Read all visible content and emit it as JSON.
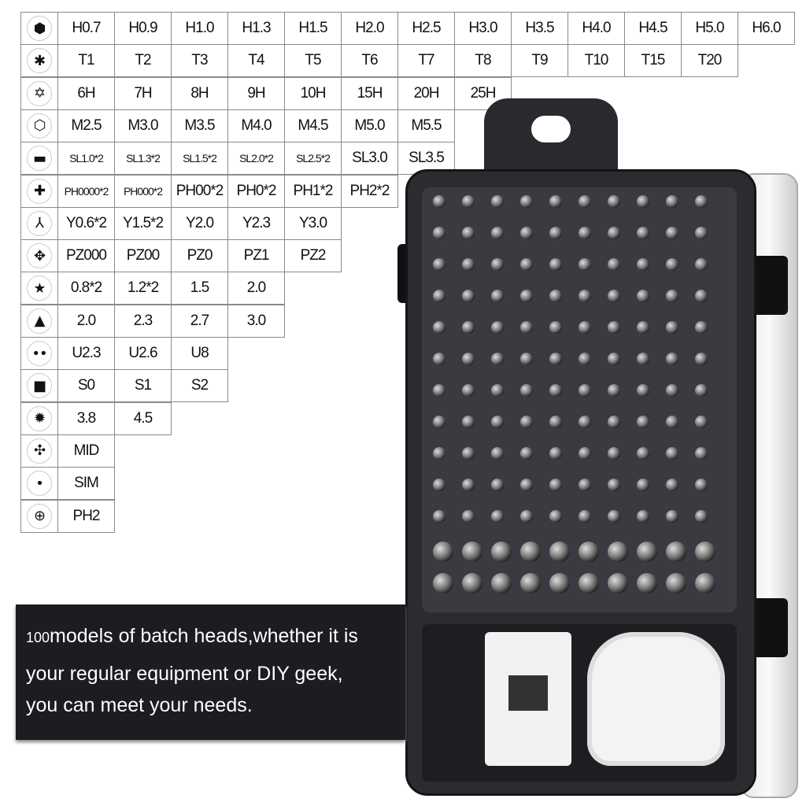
{
  "table": {
    "rows": [
      {
        "icon": "hex-icon",
        "glyph": "⬢",
        "cells": [
          "H0.7",
          "H0.9",
          "H1.0",
          "H1.3",
          "H1.5",
          "H2.0",
          "H2.5",
          "H3.0",
          "H3.5",
          "H4.0",
          "H4.5",
          "H5.0",
          "H6.0"
        ]
      },
      {
        "icon": "torx-icon",
        "glyph": "✱",
        "cells": [
          "T1",
          "T2",
          "T3",
          "T4",
          "T5",
          "T6",
          "T7",
          "T8",
          "T9",
          "T10",
          "T15",
          "T20"
        ]
      },
      {
        "icon": "torx-security-icon",
        "glyph": "✡",
        "cells": [
          "6H",
          "7H",
          "8H",
          "9H",
          "10H",
          "15H",
          "20H",
          "25H"
        ]
      },
      {
        "icon": "hex-socket-icon",
        "glyph": "⬡",
        "cells": [
          "M2.5",
          "M3.0",
          "M3.5",
          "M4.0",
          "M4.5",
          "M5.0",
          "M5.5"
        ]
      },
      {
        "icon": "slotted-icon",
        "glyph": "▬",
        "cells": [
          "SL1.0*2",
          "SL1.3*2",
          "SL1.5*2",
          "SL2.0*2",
          "SL2.5*2",
          "SL3.0",
          "SL3.5"
        ]
      },
      {
        "icon": "phillips-icon",
        "glyph": "✚",
        "cells": [
          "PH0000*2",
          "PH000*2",
          "PH00*2",
          "PH0*2",
          "PH1*2",
          "PH2*2"
        ]
      },
      {
        "icon": "tri-wing-icon",
        "glyph": "⅄",
        "cells": [
          "Y0.6*2",
          "Y1.5*2",
          "Y2.0",
          "Y2.3",
          "Y3.0"
        ]
      },
      {
        "icon": "pozidriv-icon",
        "glyph": "✥",
        "cells": [
          "PZ000",
          "PZ00",
          "PZ0",
          "PZ1",
          "PZ2"
        ]
      },
      {
        "icon": "pentalobe-icon",
        "glyph": "★",
        "cells": [
          "0.8*2",
          "1.2*2",
          "1.5",
          "2.0"
        ]
      },
      {
        "icon": "triangle-icon",
        "glyph": "▲",
        "cells": [
          "2.0",
          "2.3",
          "2.7",
          "3.0"
        ]
      },
      {
        "icon": "u-type-icon",
        "glyph": "••",
        "cells": [
          "U2.3",
          "U2.6",
          "U8"
        ]
      },
      {
        "icon": "square-icon",
        "glyph": "■",
        "cells": [
          "S0",
          "S1",
          "S2"
        ]
      },
      {
        "icon": "gear-bit-icon",
        "glyph": "✹",
        "cells": [
          "3.8",
          "4.5"
        ]
      },
      {
        "icon": "mid-icon",
        "glyph": "✣",
        "cells": [
          "MID"
        ]
      },
      {
        "icon": "sim-icon",
        "glyph": "•",
        "cells": [
          "SIM"
        ]
      },
      {
        "icon": "phillips-large-icon",
        "glyph": "⊕",
        "cells": [
          "PH2"
        ]
      }
    ]
  },
  "banner": {
    "number": "100",
    "line1": "models of batch heads,whether it is",
    "line2": "your regular equipment or DIY geek,",
    "line3": "you can meet your needs."
  }
}
